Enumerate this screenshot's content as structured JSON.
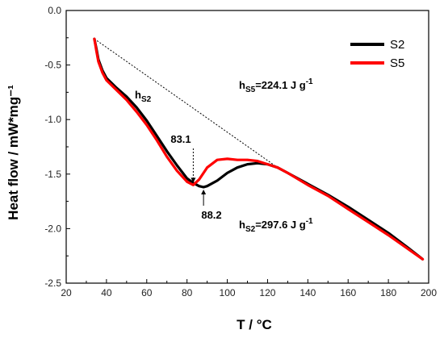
{
  "chart_data": {
    "type": "line",
    "xlabel": "T / °C",
    "ylabel": "Heat flow / mW*mg⁻¹",
    "xlim": [
      20,
      200
    ],
    "ylim": [
      -2.5,
      0.0
    ],
    "xticks": [
      20,
      40,
      60,
      80,
      100,
      120,
      140,
      160,
      180,
      200
    ],
    "yticks": [
      0.0,
      -0.5,
      -1.0,
      -1.5,
      -2.0,
      -2.5
    ],
    "xtick_labels": [
      "20",
      "40",
      "60",
      "80",
      "100",
      "120",
      "140",
      "160",
      "180",
      "200"
    ],
    "ytick_labels": [
      "0.0",
      "-0.5",
      "-1.0",
      "-1.5",
      "-2.0",
      "-2.5"
    ],
    "grid": false,
    "legend_position": "top-right",
    "series": [
      {
        "name": "S2",
        "color": "#000000",
        "x": [
          34,
          35,
          36,
          38,
          40,
          45,
          50,
          55,
          60,
          65,
          70,
          75,
          80,
          83,
          86,
          88.2,
          90,
          95,
          100,
          105,
          110,
          115,
          120,
          125,
          130,
          140,
          150,
          160,
          170,
          180,
          190,
          197
        ],
        "y": [
          -0.26,
          -0.35,
          -0.45,
          -0.55,
          -0.62,
          -0.71,
          -0.79,
          -0.89,
          -1.01,
          -1.15,
          -1.29,
          -1.42,
          -1.54,
          -1.58,
          -1.61,
          -1.62,
          -1.61,
          -1.56,
          -1.49,
          -1.44,
          -1.41,
          -1.4,
          -1.41,
          -1.44,
          -1.49,
          -1.59,
          -1.69,
          -1.8,
          -1.92,
          -2.04,
          -2.18,
          -2.28
        ]
      },
      {
        "name": "S5",
        "color": "#ff0000",
        "x": [
          34,
          35,
          36,
          38,
          40,
          45,
          50,
          55,
          60,
          65,
          70,
          75,
          80,
          83.1,
          86,
          90,
          95,
          100,
          105,
          110,
          115,
          120,
          125,
          130,
          140,
          150,
          160,
          170,
          180,
          190,
          197
        ],
        "y": [
          -0.26,
          -0.37,
          -0.47,
          -0.57,
          -0.64,
          -0.73,
          -0.82,
          -0.93,
          -1.05,
          -1.19,
          -1.34,
          -1.47,
          -1.57,
          -1.6,
          -1.55,
          -1.44,
          -1.37,
          -1.36,
          -1.37,
          -1.37,
          -1.38,
          -1.41,
          -1.44,
          -1.49,
          -1.6,
          -1.7,
          -1.82,
          -1.94,
          -2.06,
          -2.19,
          -2.28
        ]
      }
    ],
    "baseline": {
      "x": [
        34,
        125
      ],
      "y": [
        -0.26,
        -1.44
      ]
    },
    "annotations": {
      "s2_peak": {
        "label": "88.2",
        "x": 88.2,
        "y": -1.62
      },
      "s5_peak": {
        "label": "83.1",
        "x": 83.1,
        "y": -1.6
      },
      "hs2_symbol": {
        "main": "h",
        "sub": "S2"
      },
      "hs5_value": {
        "main": "h",
        "sub": "S5",
        "rest": "=224.1 J g",
        "sup": "-1"
      },
      "hs2_value": {
        "main": "h",
        "sub": "S2",
        "rest": "=297.6 J g",
        "sup": "-1"
      }
    }
  }
}
